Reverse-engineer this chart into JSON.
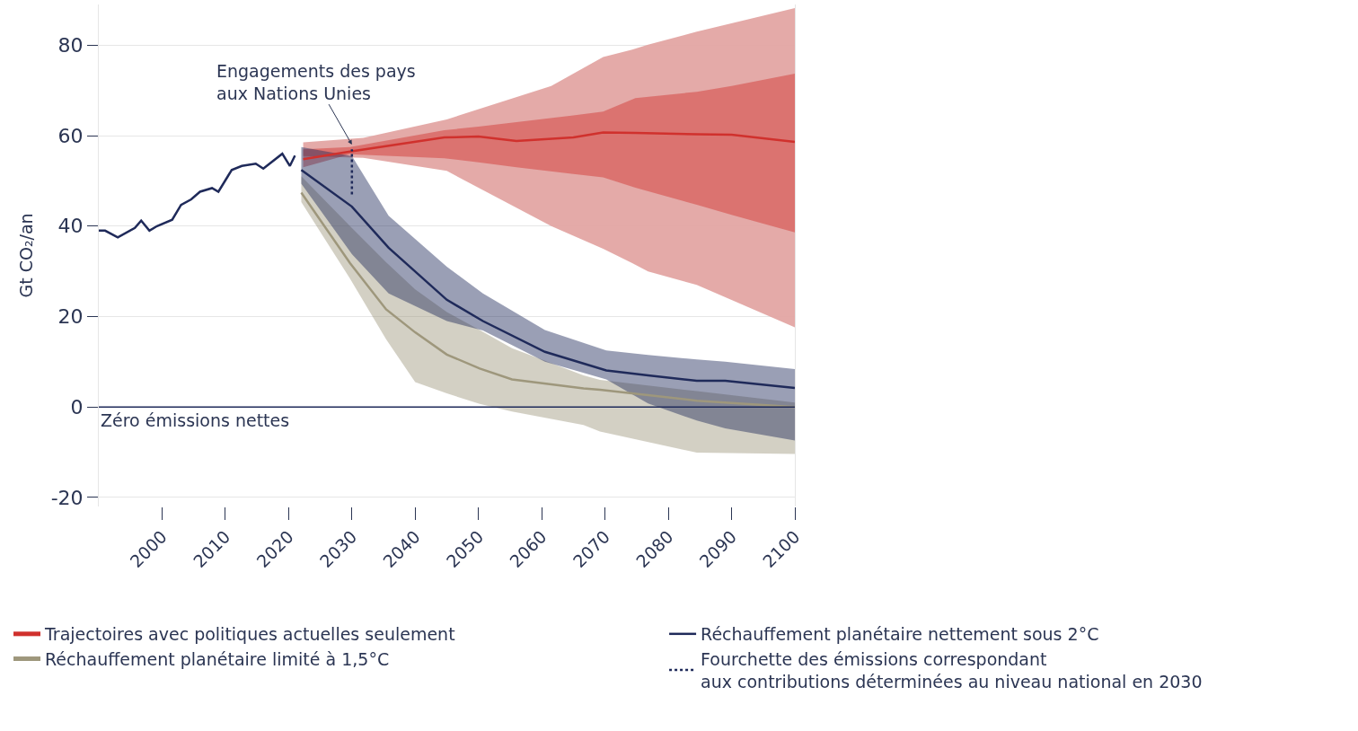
{
  "chart_data": {
    "type": "line",
    "ylabel": "Gt CO₂/an",
    "xlim": [
      1990,
      2100
    ],
    "xticks": [
      2000,
      2010,
      2020,
      2030,
      2040,
      2050,
      2060,
      2070,
      2080,
      2090,
      2100
    ],
    "ylim": [
      -22,
      89
    ],
    "yticks": [
      -20,
      0,
      20,
      40,
      60,
      80
    ],
    "grid": "y",
    "legend": "bottom",
    "marker": "none",
    "line_style": "solid",
    "series": [
      {
        "color": "#e3a5a3",
        "x": [
          2022.3,
          2031.8,
          2045,
          2061.5,
          2069.7,
          2074.3,
          2076.8,
          2084.5,
          2100
        ],
        "values": [
          null,
          null,
          null,
          null,
          null,
          null,
          null,
          null,
          null
        ],
        "lower": [
          55.5,
          55.1,
          52.2,
          40,
          35,
          31.8,
          30,
          27,
          17.6
        ],
        "upper": [
          58.5,
          59.5,
          63.6,
          71,
          77.4,
          79,
          80.1,
          83,
          88.2
        ]
      },
      {
        "name": "Trajectoires avec politiques actuelles seulement",
        "color": "#d0312d",
        "x": [
          2022.3,
          2029.7,
          2044.6,
          2050,
          2056,
          2065,
          2069.7,
          2074.8,
          2084.5,
          2090,
          2100
        ],
        "values": [
          54.8,
          56.5,
          59.6,
          59.8,
          58.8,
          59.6,
          60.7,
          60.6,
          60.3,
          60.2,
          58.6
        ],
        "lower": [
          53,
          55.9,
          55,
          54.1,
          53,
          51.5,
          50.8,
          48.5,
          44.7,
          42.5,
          38.6
        ],
        "upper": [
          57,
          57.5,
          61.2,
          62,
          63,
          64.5,
          65.3,
          68.3,
          69.7,
          71,
          73.7
        ]
      },
      {
        "name": "Réchauffement planétaire limité à 1,5°C",
        "color": "#9e977c",
        "x": [
          2022,
          2029.7,
          2035.4,
          2040,
          2045,
          2050.2,
          2055.3,
          2066.6,
          2069.2,
          2084.5,
          2100
        ],
        "values": [
          47.4,
          31.8,
          21.6,
          16.5,
          11.6,
          8.5,
          6.1,
          4.1,
          3.8,
          1.4,
          0
        ],
        "lower": [
          45.3,
          28.4,
          15,
          5.5,
          3,
          0.7,
          -1,
          -4,
          -5.4,
          -10.1,
          -10.4
        ],
        "upper": [
          51,
          40,
          32,
          26,
          21,
          17,
          13,
          7,
          6,
          3.5,
          1
        ]
      },
      {
        "name": "Réchauffement planétaire nettement sous 2°C",
        "color": "#1f2a5a",
        "x": [
          2022,
          2030,
          2035.8,
          2045,
          2050.7,
          2060.5,
          2070.2,
          2076.8,
          2084.5,
          2089,
          2100
        ],
        "values": [
          52.4,
          44.3,
          35.2,
          23.7,
          19,
          12.2,
          8.1,
          7,
          5.8,
          5.8,
          4.2
        ],
        "lower": [
          49.4,
          33.8,
          25.1,
          19,
          16.9,
          10,
          6.1,
          0.8,
          -3,
          -4.7,
          -7.4
        ],
        "upper": [
          57.5,
          55.5,
          42.3,
          31,
          25.1,
          17,
          12.5,
          11.5,
          10.5,
          10,
          8.4
        ]
      },
      {
        "color": "#1f2a5a",
        "x": [
          1990,
          1991,
          1993,
          1995.7,
          1996.7,
          1998,
          1999.2,
          2001.6,
          2003,
          2004.6,
          2006,
          2007.9,
          2008.9,
          2011,
          2012.6,
          2014.8,
          2016,
          2019,
          2020.2,
          2021
        ],
        "values": [
          39,
          39,
          37.5,
          39.6,
          41.2,
          39,
          40,
          41.4,
          44.7,
          45.9,
          47.6,
          48.4,
          47.6,
          52.4,
          53.3,
          53.8,
          52.7,
          56,
          53.3,
          55.6
        ]
      },
      {
        "name": "Fourchette des émissions correspondant\naux contributions déterminées au niveau national en 2030",
        "color": "#1f2a5a",
        "line_style": "dotted",
        "x": [
          2030,
          2030
        ],
        "values": [
          47,
          57
        ]
      }
    ],
    "ref_lines": [
      {
        "axis": "y",
        "value": 0,
        "label": "Zéro émissions nettes",
        "color": "#1f2a5a"
      }
    ],
    "annotations": [
      {
        "text": "Engagements des pays\naux Nations Unies",
        "x": 2030,
        "y": 58
      }
    ]
  }
}
